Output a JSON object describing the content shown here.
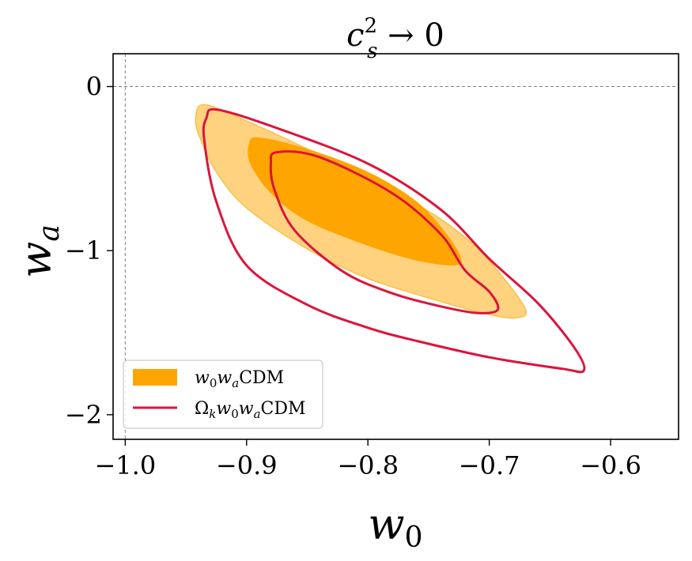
{
  "colors": {
    "orange_inner": "#ffa500",
    "orange_outer": "#ffd280",
    "orange_edge": "#f7c24a",
    "crimson": "#dc143c",
    "axis": "#000000",
    "guide": "#808080"
  },
  "chart_data": {
    "type": "contour",
    "title": {
      "base": "c",
      "sup": "2",
      "sub": "s",
      "tail": " → 0"
    },
    "xlabel": {
      "base": "w",
      "sub": "0"
    },
    "ylabel": {
      "base": "w",
      "sub": "a"
    },
    "xlim": [
      -1.01,
      -0.544
    ],
    "ylim": [
      -2.15,
      0.2
    ],
    "xticks": [
      -1.0,
      -0.9,
      -0.8,
      -0.7,
      -0.6
    ],
    "xtick_labels": [
      "−1.0",
      "−0.9",
      "−0.8",
      "−0.7",
      "−0.6"
    ],
    "yticks": [
      0,
      -1,
      -2
    ],
    "ytick_labels": [
      "0",
      "−1",
      "−2"
    ],
    "reference_lines": {
      "x": -1.0,
      "y": 0
    },
    "legend": {
      "placement": "lower-left",
      "entries": [
        {
          "text": "w₀wₐCDM",
          "math": {
            "b1": "w",
            "s1": "0",
            "b2": "w",
            "s2": "a",
            "tail": "CDM"
          }
        },
        {
          "text": "Ωₖw₀wₐCDM",
          "math": {
            "b0": "Ω",
            "s0": "k",
            "b1": "w",
            "s1": "0",
            "b2": "w",
            "s2": "a",
            "tail": "CDM"
          }
        }
      ]
    },
    "series": [
      {
        "name": "w₀wₐCDM",
        "style": "filled",
        "contours": [
          {
            "level": "95%",
            "points": [
              [
                -0.935,
                -0.11
              ],
              [
                -0.9,
                -0.21
              ],
              [
                -0.85,
                -0.38
              ],
              [
                -0.8,
                -0.56
              ],
              [
                -0.75,
                -0.76
              ],
              [
                -0.715,
                -0.95
              ],
              [
                -0.69,
                -1.15
              ],
              [
                -0.67,
                -1.36
              ],
              [
                -0.678,
                -1.41
              ],
              [
                -0.7,
                -1.39
              ],
              [
                -0.74,
                -1.31
              ],
              [
                -0.8,
                -1.17
              ],
              [
                -0.85,
                -0.99
              ],
              [
                -0.9,
                -0.74
              ],
              [
                -0.925,
                -0.52
              ],
              [
                -0.938,
                -0.32
              ],
              [
                -0.942,
                -0.2
              ],
              [
                -0.935,
                -0.11
              ]
            ]
          },
          {
            "level": "68%",
            "points": [
              [
                -0.89,
                -0.31
              ],
              [
                -0.85,
                -0.38
              ],
              [
                -0.8,
                -0.52
              ],
              [
                -0.76,
                -0.7
              ],
              [
                -0.735,
                -0.9
              ],
              [
                -0.723,
                -1.05
              ],
              [
                -0.73,
                -1.09
              ],
              [
                -0.76,
                -1.06
              ],
              [
                -0.8,
                -0.97
              ],
              [
                -0.85,
                -0.82
              ],
              [
                -0.88,
                -0.65
              ],
              [
                -0.897,
                -0.47
              ],
              [
                -0.898,
                -0.35
              ],
              [
                -0.89,
                -0.31
              ]
            ]
          }
        ]
      },
      {
        "name": "Ωₖw₀wₐCDM",
        "style": "line",
        "contours": [
          {
            "level": "95%",
            "points": [
              [
                -0.925,
                -0.14
              ],
              [
                -0.88,
                -0.24
              ],
              [
                -0.8,
                -0.47
              ],
              [
                -0.74,
                -0.75
              ],
              [
                -0.7,
                -1.05
              ],
              [
                -0.66,
                -1.32
              ],
              [
                -0.63,
                -1.59
              ],
              [
                -0.622,
                -1.73
              ],
              [
                -0.64,
                -1.72
              ],
              [
                -0.7,
                -1.65
              ],
              [
                -0.76,
                -1.55
              ],
              [
                -0.8,
                -1.47
              ],
              [
                -0.85,
                -1.33
              ],
              [
                -0.9,
                -1.09
              ],
              [
                -0.925,
                -0.7
              ],
              [
                -0.935,
                -0.32
              ],
              [
                -0.933,
                -0.19
              ],
              [
                -0.925,
                -0.14
              ]
            ]
          },
          {
            "level": "68%",
            "points": [
              [
                -0.875,
                -0.4
              ],
              [
                -0.84,
                -0.43
              ],
              [
                -0.78,
                -0.65
              ],
              [
                -0.74,
                -0.9
              ],
              [
                -0.72,
                -1.12
              ],
              [
                -0.7,
                -1.25
              ],
              [
                -0.693,
                -1.36
              ],
              [
                -0.71,
                -1.38
              ],
              [
                -0.74,
                -1.34
              ],
              [
                -0.78,
                -1.26
              ],
              [
                -0.82,
                -1.13
              ],
              [
                -0.86,
                -0.88
              ],
              [
                -0.877,
                -0.63
              ],
              [
                -0.88,
                -0.47
              ],
              [
                -0.875,
                -0.4
              ]
            ]
          }
        ]
      }
    ]
  }
}
